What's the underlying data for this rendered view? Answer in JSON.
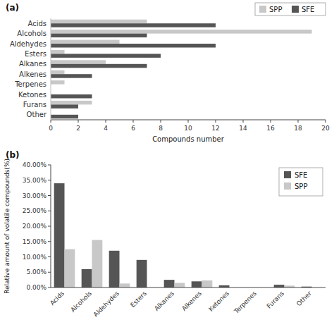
{
  "chart_data": [
    {
      "type": "bar",
      "orientation": "horizontal",
      "title": "(a)",
      "xlabel": "Compounds number",
      "categories": [
        "Acids",
        "Alcohols",
        "Aldehydes",
        "Esters",
        "Alkanes",
        "Alkenes",
        "Terpenes",
        "Ketones",
        "Furans",
        "Other"
      ],
      "series": [
        {
          "name": "SPP",
          "color": "#c8c8c8",
          "values": [
            7,
            19,
            5,
            1,
            4,
            1,
            1,
            0,
            3,
            0
          ]
        },
        {
          "name": "SFE",
          "color": "#555555",
          "values": [
            12,
            7,
            12,
            8,
            7,
            3,
            0,
            3,
            2,
            2
          ]
        }
      ],
      "xlim": [
        0,
        20
      ],
      "xticks": [
        0,
        2,
        4,
        6,
        8,
        10,
        12,
        14,
        16,
        18,
        20
      ],
      "legend": "upper right"
    },
    {
      "type": "bar",
      "title": "(b)",
      "ylabel": "Relative amount of volatile compounds(%)",
      "categories": [
        "Acids",
        "Alcohols",
        "Aldehydes",
        "Esters",
        "Alkanes",
        "Alkenes",
        "Ketones",
        "Terpenes",
        "Furans",
        "Other"
      ],
      "series": [
        {
          "name": "SFE",
          "color": "#555555",
          "values": [
            0.34,
            0.06,
            0.12,
            0.09,
            0.025,
            0.02,
            0.007,
            0.0,
            0.009,
            0.003
          ]
        },
        {
          "name": "SPP",
          "color": "#c8c8c8",
          "values": [
            0.125,
            0.155,
            0.013,
            0.0,
            0.015,
            0.023,
            0.0,
            0.0,
            0.006,
            0.0
          ]
        }
      ],
      "ylim": [
        0,
        0.4
      ],
      "yticks": [
        {
          "value": 0.0,
          "label": "0.00%"
        },
        {
          "value": 0.05,
          "label": "5.00%"
        },
        {
          "value": 0.1,
          "label": "10.00%"
        },
        {
          "value": 0.15,
          "label": "15.00%"
        },
        {
          "value": 0.2,
          "label": "20.00%"
        },
        {
          "value": 0.25,
          "label": "25.00%"
        },
        {
          "value": 0.3,
          "label": "30.00%"
        },
        {
          "value": 0.35,
          "label": "35.00%"
        },
        {
          "value": 0.4,
          "label": "40.00%"
        }
      ],
      "legend": "upper right"
    }
  ]
}
